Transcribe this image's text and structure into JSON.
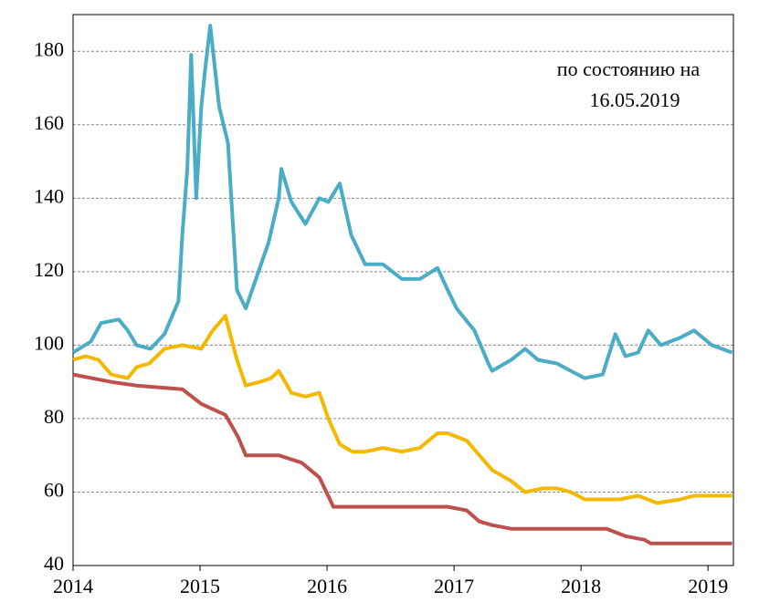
{
  "chart_data": {
    "type": "line",
    "annotations": [
      "по состоянию на",
      "16.05.2019"
    ],
    "xlim": [
      2014,
      2019.2
    ],
    "xticks": [
      2014,
      2015,
      2016,
      2017,
      2018,
      2019
    ],
    "ylim": [
      40,
      190
    ],
    "yticks": [
      40,
      60,
      80,
      100,
      120,
      140,
      160,
      180
    ],
    "grid": true,
    "series": [
      {
        "color": "#4bacc6",
        "x": [
          2014.0,
          2014.14,
          2014.22,
          2014.36,
          2014.43,
          2014.5,
          2014.61,
          2014.72,
          2014.83,
          2014.86,
          2014.9,
          2014.93,
          2014.97,
          2015.01,
          2015.04,
          2015.08,
          2015.15,
          2015.22,
          2015.29,
          2015.36,
          2015.47,
          2015.54,
          2015.62,
          2015.64,
          2015.72,
          2015.83,
          2015.94,
          2016.01,
          2016.1,
          2016.19,
          2016.3,
          2016.44,
          2016.59,
          2016.73,
          2016.87,
          2016.95,
          2017.02,
          2017.16,
          2017.27,
          2017.3,
          2017.45,
          2017.56,
          2017.66,
          2017.81,
          2017.92,
          2018.03,
          2018.17,
          2018.27,
          2018.35,
          2018.45,
          2018.53,
          2018.63,
          2018.78,
          2018.89,
          2019.03,
          2019.19
        ],
        "values": [
          98,
          101,
          106,
          107,
          104,
          100,
          99,
          103,
          112,
          130,
          148,
          179,
          140,
          165,
          175,
          187,
          165,
          155,
          115,
          110,
          121,
          128,
          140,
          148,
          139,
          133,
          140,
          139,
          144,
          130,
          122,
          122,
          118,
          118,
          121,
          115,
          110,
          104,
          95,
          93,
          96,
          99,
          96,
          95,
          93,
          91,
          92,
          103,
          97,
          98,
          104,
          100,
          102,
          104,
          100,
          98
        ]
      },
      {
        "color": "#f5b800",
        "x": [
          2014.0,
          2014.1,
          2014.2,
          2014.3,
          2014.43,
          2014.5,
          2014.6,
          2014.72,
          2014.86,
          2015.01,
          2015.1,
          2015.2,
          2015.29,
          2015.36,
          2015.47,
          2015.56,
          2015.62,
          2015.72,
          2015.83,
          2015.94,
          2016.01,
          2016.1,
          2016.2,
          2016.3,
          2016.44,
          2016.59,
          2016.73,
          2016.87,
          2016.95,
          2017.1,
          2017.2,
          2017.3,
          2017.45,
          2017.56,
          2017.7,
          2017.81,
          2017.92,
          2018.03,
          2018.17,
          2018.3,
          2018.45,
          2018.6,
          2018.78,
          2018.89,
          2019.03,
          2019.19
        ],
        "values": [
          96,
          97,
          96,
          92,
          91,
          94,
          95,
          99,
          100,
          99,
          104,
          108,
          96,
          89,
          90,
          91,
          93,
          87,
          86,
          87,
          80,
          73,
          71,
          71,
          72,
          71,
          72,
          76,
          76,
          74,
          70,
          66,
          63,
          60,
          61,
          61,
          60,
          58,
          58,
          58,
          59,
          57,
          58,
          59,
          59,
          59
        ]
      },
      {
        "color": "#c0504d",
        "x": [
          2014.0,
          2014.3,
          2014.5,
          2014.86,
          2015.01,
          2015.2,
          2015.3,
          2015.36,
          2015.62,
          2015.8,
          2015.94,
          2016.05,
          2016.3,
          2016.95,
          2017.1,
          2017.2,
          2017.3,
          2017.45,
          2017.92,
          2018.2,
          2018.35,
          2018.5,
          2018.55,
          2019.19
        ],
        "values": [
          92,
          90,
          89,
          88,
          84,
          81,
          75,
          70,
          70,
          68,
          64,
          56,
          56,
          56,
          55,
          52,
          51,
          50,
          50,
          50,
          48,
          47,
          46,
          46
        ]
      }
    ]
  }
}
